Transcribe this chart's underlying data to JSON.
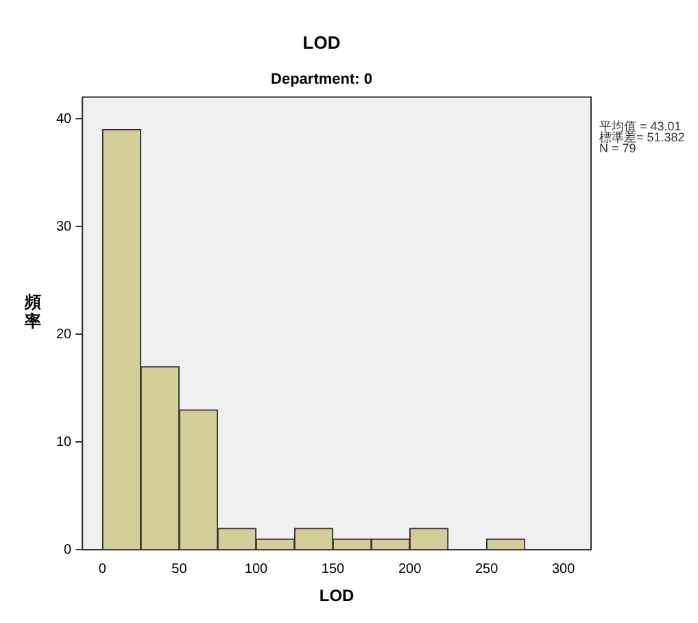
{
  "chart_data": {
    "type": "histogram",
    "title": "LOD",
    "subtitle": "Department: 0",
    "xlabel": "LOD",
    "ylabel": "頻率",
    "bins": [
      0,
      25,
      50,
      75,
      100,
      125,
      150,
      175,
      200,
      225,
      250,
      275
    ],
    "values": [
      39,
      17,
      13,
      2,
      1,
      2,
      1,
      1,
      2,
      0,
      1
    ],
    "color": "#d3ce97",
    "xlim": [
      -13,
      318
    ],
    "xticks": [
      0,
      50,
      100,
      150,
      200,
      250,
      300
    ],
    "ylim": [
      0,
      42
    ],
    "yticks": [
      0,
      10,
      20,
      30,
      40
    ],
    "grid": false,
    "legend": false,
    "annotations": [
      "平均值 = 43.01",
      "標準差= 51.382",
      "N = 79"
    ]
  }
}
